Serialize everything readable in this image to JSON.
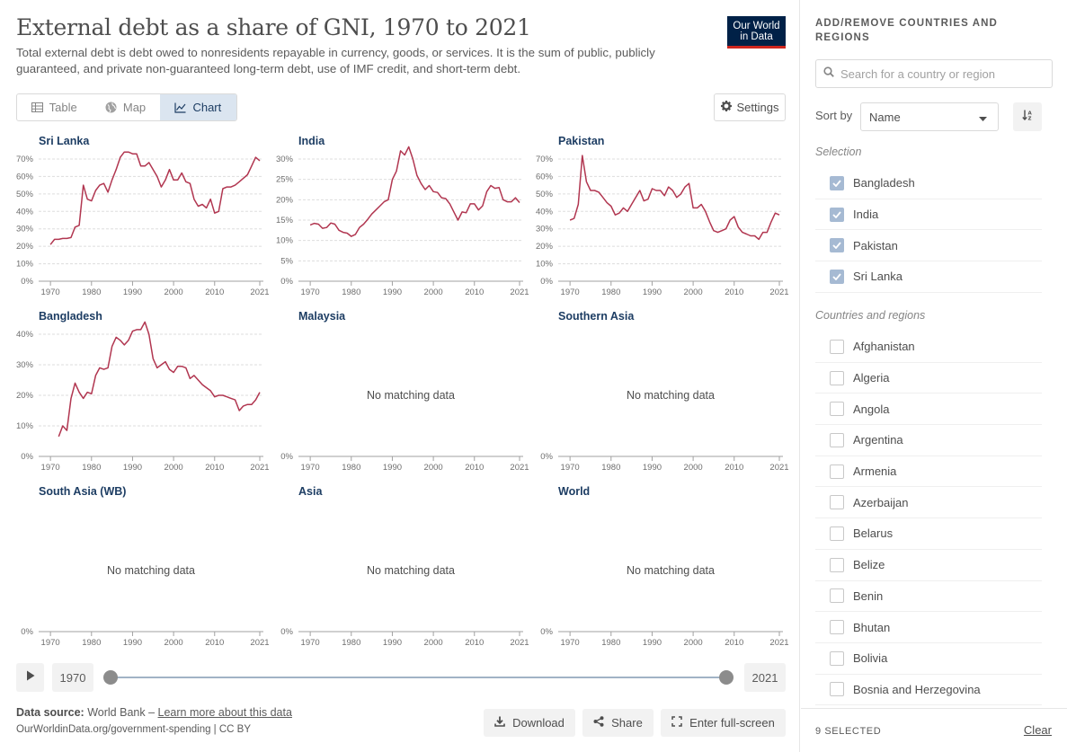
{
  "header": {
    "title": "External debt as a share of GNI, 1970 to 2021",
    "subtitle": "Total external debt is debt owed to nonresidents repayable in currency, goods, or services. It is the sum of public, publicly guaranteed, and private non-guaranteed long-term debt, use of IMF credit, and short-term debt.",
    "logo_line1": "Our World",
    "logo_line2": "in Data"
  },
  "tabs": [
    {
      "label": "Table",
      "icon": "table-icon"
    },
    {
      "label": "Map",
      "icon": "globe-icon"
    },
    {
      "label": "Chart",
      "icon": "line-chart-icon",
      "active": true
    }
  ],
  "settings_label": "Settings",
  "no_data_label": "No matching data",
  "chart_data": {
    "type": "line",
    "line_color": "#b13650",
    "x_ticks": [
      "1970",
      "1980",
      "1990",
      "2000",
      "2010",
      "2021"
    ],
    "xlim": [
      1968,
      2021
    ],
    "panels": [
      {
        "name": "Sri Lanka",
        "ylim": [
          0,
          70
        ],
        "yticks": [
          "0%",
          "10%",
          "20%",
          "30%",
          "40%",
          "50%",
          "60%",
          "70%"
        ],
        "x": [
          1970,
          1971,
          1972,
          1973,
          1974,
          1975,
          1976,
          1977,
          1978,
          1979,
          1980,
          1981,
          1982,
          1983,
          1984,
          1985,
          1986,
          1987,
          1988,
          1989,
          1990,
          1991,
          1992,
          1993,
          1994,
          1995,
          1996,
          1997,
          1998,
          1999,
          2000,
          2001,
          2002,
          2003,
          2004,
          2005,
          2006,
          2007,
          2008,
          2009,
          2010,
          2011,
          2012,
          2013,
          2014,
          2015,
          2016,
          2017,
          2018,
          2019,
          2020,
          2021
        ],
        "y": [
          21,
          24,
          24,
          24.5,
          24.5,
          25,
          31,
          32,
          55,
          47,
          46,
          52,
          55,
          56,
          51,
          58,
          64,
          71,
          74,
          74,
          73,
          73,
          66,
          66,
          68,
          64,
          60,
          54,
          58,
          64,
          58,
          58,
          62,
          57,
          56,
          47,
          43,
          44,
          42,
          47,
          39,
          40,
          53,
          54,
          54,
          55,
          57,
          59,
          61,
          66,
          71,
          69
        ]
      },
      {
        "name": "India",
        "ylim": [
          0,
          30
        ],
        "yticks": [
          "0%",
          "5%",
          "10%",
          "15%",
          "20%",
          "25%",
          "30%"
        ],
        "x": [
          1970,
          1971,
          1972,
          1973,
          1974,
          1975,
          1976,
          1977,
          1978,
          1979,
          1980,
          1981,
          1982,
          1983,
          1984,
          1985,
          1986,
          1987,
          1988,
          1989,
          1990,
          1991,
          1992,
          1993,
          1994,
          1995,
          1996,
          1997,
          1998,
          1999,
          2000,
          2001,
          2002,
          2003,
          2004,
          2005,
          2006,
          2007,
          2008,
          2009,
          2010,
          2011,
          2012,
          2013,
          2014,
          2015,
          2016,
          2017,
          2018,
          2019,
          2020,
          2021
        ],
        "y": [
          13.8,
          14.2,
          14.0,
          13.0,
          13.2,
          14.3,
          14.0,
          12.5,
          12.0,
          11.8,
          11.0,
          11.5,
          13.2,
          14.0,
          15.2,
          16.5,
          17.5,
          18.5,
          19.5,
          20.0,
          25.0,
          27.0,
          32.0,
          31.0,
          33.0,
          30.0,
          26.0,
          24.0,
          22.5,
          23.5,
          22.0,
          21.8,
          20.5,
          20.3,
          19.0,
          17.0,
          15.0,
          17.0,
          16.8,
          19.0,
          19.0,
          17.5,
          18.5,
          22.0,
          23.5,
          22.8,
          23.0,
          20.0,
          19.5,
          19.5,
          20.5,
          19.3
        ]
      },
      {
        "name": "Pakistan",
        "ylim": [
          0,
          70
        ],
        "yticks": [
          "0%",
          "10%",
          "20%",
          "30%",
          "40%",
          "50%",
          "60%",
          "70%"
        ],
        "x": [
          1970,
          1971,
          1972,
          1973,
          1974,
          1975,
          1976,
          1977,
          1978,
          1979,
          1980,
          1981,
          1982,
          1983,
          1984,
          1985,
          1986,
          1987,
          1988,
          1989,
          1990,
          1991,
          1992,
          1993,
          1994,
          1995,
          1996,
          1997,
          1998,
          1999,
          2000,
          2001,
          2002,
          2003,
          2004,
          2005,
          2006,
          2007,
          2008,
          2009,
          2010,
          2011,
          2012,
          2013,
          2014,
          2015,
          2016,
          2017,
          2018,
          2019,
          2020,
          2021
        ],
        "y": [
          35,
          36,
          44,
          72,
          57,
          52,
          52,
          51,
          48,
          45,
          43,
          38,
          39,
          42,
          40,
          44,
          48,
          52,
          46,
          47,
          53,
          52,
          52,
          49,
          54,
          52,
          48,
          50,
          54,
          56,
          42,
          42,
          44,
          40,
          34,
          29,
          28,
          29,
          30,
          35,
          37,
          31,
          28,
          27,
          26,
          26,
          24,
          28,
          28,
          34,
          39,
          38
        ]
      },
      {
        "name": "Bangladesh",
        "ylim": [
          0,
          40
        ],
        "yticks": [
          "0%",
          "10%",
          "20%",
          "30%",
          "40%"
        ],
        "x": [
          1972,
          1973,
          1974,
          1975,
          1976,
          1977,
          1978,
          1979,
          1980,
          1981,
          1982,
          1983,
          1984,
          1985,
          1986,
          1987,
          1988,
          1989,
          1990,
          1991,
          1992,
          1993,
          1994,
          1995,
          1996,
          1997,
          1998,
          1999,
          2000,
          2001,
          2002,
          2003,
          2004,
          2005,
          2006,
          2007,
          2008,
          2009,
          2010,
          2011,
          2012,
          2013,
          2014,
          2015,
          2016,
          2017,
          2018,
          2019,
          2020,
          2021
        ],
        "y": [
          6.5,
          10,
          8.5,
          19,
          24,
          21,
          19,
          21,
          20.5,
          26.5,
          29,
          28.5,
          29,
          36,
          39,
          38,
          36.5,
          38,
          41,
          41.5,
          41.5,
          44,
          40,
          32,
          29,
          30,
          31,
          28.5,
          27.5,
          29.5,
          29.5,
          29,
          25.5,
          26.5,
          25,
          23.5,
          22.5,
          21.5,
          19.5,
          20,
          20,
          19.5,
          19,
          18.5,
          15,
          16.5,
          17,
          17,
          18.5,
          21
        ]
      },
      {
        "name": "Malaysia",
        "ylim": [
          0,
          40
        ],
        "yticks": [
          "0%"
        ],
        "x": [],
        "y": []
      },
      {
        "name": "Southern Asia",
        "ylim": [
          0,
          40
        ],
        "yticks": [
          "0%"
        ],
        "x": [],
        "y": []
      },
      {
        "name": "South Asia (WB)",
        "ylim": [
          0,
          40
        ],
        "yticks": [
          "0%"
        ],
        "x": [],
        "y": []
      },
      {
        "name": "Asia",
        "ylim": [
          0,
          40
        ],
        "yticks": [
          "0%"
        ],
        "x": [],
        "y": []
      },
      {
        "name": "World",
        "ylim": [
          0,
          40
        ],
        "yticks": [
          "0%"
        ],
        "x": [],
        "y": []
      }
    ]
  },
  "timeline": {
    "start_year": "1970",
    "end_year": "2021",
    "start_value": 0,
    "end_value": 1
  },
  "footer": {
    "source_label": "Data source:",
    "source_value": "World Bank",
    "source_sep": "–",
    "learn_more": "Learn more about this data",
    "url_line": "OurWorldinData.org/government-spending | CC BY",
    "download_label": "Download",
    "share_label": "Share",
    "fullscreen_label": "Enter full-screen"
  },
  "sidebar": {
    "heading": "ADD/REMOVE COUNTRIES AND REGIONS",
    "search_placeholder": "Search for a country or region",
    "sort_label": "Sort by",
    "sort_value": "Name",
    "selection_heading": "Selection",
    "selected": [
      "Bangladesh",
      "India",
      "Pakistan",
      "Sri Lanka"
    ],
    "countries_heading": "Countries and regions",
    "countries": [
      "Afghanistan",
      "Algeria",
      "Angola",
      "Argentina",
      "Armenia",
      "Azerbaijan",
      "Belarus",
      "Belize",
      "Benin",
      "Bhutan",
      "Bolivia",
      "Bosnia and Herzegovina"
    ],
    "selected_count": "9 SELECTED",
    "clear_label": "Clear"
  }
}
